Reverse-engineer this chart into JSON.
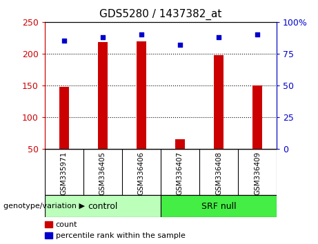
{
  "title": "GDS5280 / 1437382_at",
  "samples": [
    "GSM335971",
    "GSM336405",
    "GSM336406",
    "GSM336407",
    "GSM336408",
    "GSM336409"
  ],
  "counts": [
    148,
    218,
    219,
    65,
    198,
    150
  ],
  "percentile_ranks": [
    85,
    88,
    90,
    82,
    88,
    90
  ],
  "ylim_left": [
    50,
    250
  ],
  "ylim_right": [
    0,
    100
  ],
  "yticks_left": [
    50,
    100,
    150,
    200,
    250
  ],
  "yticks_right": [
    0,
    25,
    50,
    75,
    100
  ],
  "left_tick_labels": [
    "50",
    "100",
    "150",
    "200",
    "250"
  ],
  "right_tick_labels": [
    "0",
    "25",
    "50",
    "75",
    "100%"
  ],
  "bar_color": "#cc0000",
  "dot_color": "#0000cc",
  "groups": [
    {
      "label": "control",
      "indices": [
        0,
        1,
        2
      ],
      "color": "#bbffbb"
    },
    {
      "label": "SRF null",
      "indices": [
        3,
        4,
        5
      ],
      "color": "#44ee44"
    }
  ],
  "genotype_label": "genotype/variation",
  "legend_items": [
    {
      "label": "count",
      "color": "#cc0000"
    },
    {
      "label": "percentile rank within the sample",
      "color": "#0000cc"
    }
  ],
  "background_color": "#ffffff",
  "plot_bg_color": "#ffffff",
  "tick_label_area_color": "#c8c8c8",
  "grid_color": "#000000",
  "bar_width": 0.25
}
